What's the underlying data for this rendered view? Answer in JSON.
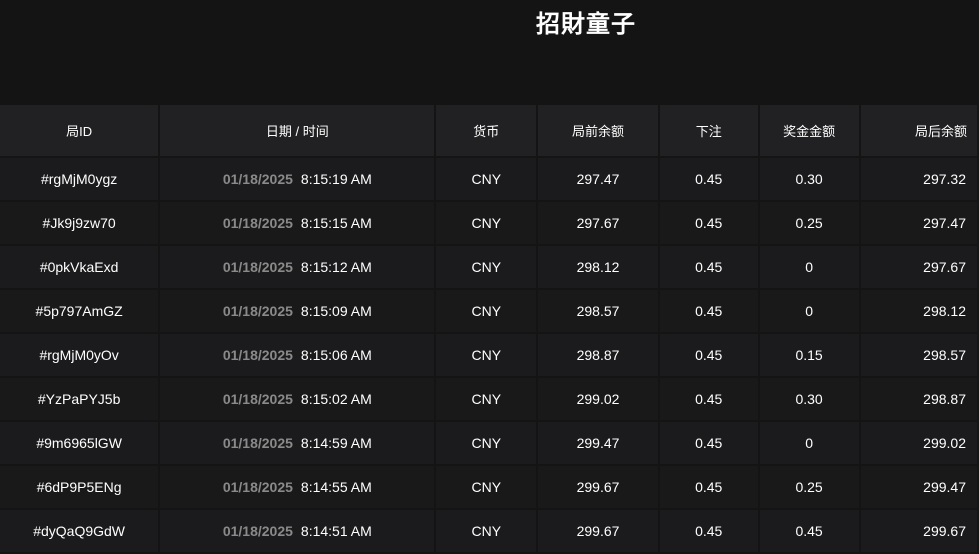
{
  "title": "招財童子",
  "columns": [
    "局ID",
    "日期 / 时间",
    "货币",
    "局前余额",
    "下注",
    "奖金金额",
    "局后余额"
  ],
  "rows": [
    {
      "id": "#rgMjM0ygz",
      "date": "01/18/2025",
      "time": "8:15:19 AM",
      "currency": "CNY",
      "before": "297.47",
      "bet": "0.45",
      "win": "0.30",
      "after": "297.32"
    },
    {
      "id": "#Jk9j9zw70",
      "date": "01/18/2025",
      "time": "8:15:15 AM",
      "currency": "CNY",
      "before": "297.67",
      "bet": "0.45",
      "win": "0.25",
      "after": "297.47"
    },
    {
      "id": "#0pkVkaExd",
      "date": "01/18/2025",
      "time": "8:15:12 AM",
      "currency": "CNY",
      "before": "298.12",
      "bet": "0.45",
      "win": "0",
      "after": "297.67"
    },
    {
      "id": "#5p797AmGZ",
      "date": "01/18/2025",
      "time": "8:15:09 AM",
      "currency": "CNY",
      "before": "298.57",
      "bet": "0.45",
      "win": "0",
      "after": "298.12"
    },
    {
      "id": "#rgMjM0yOv",
      "date": "01/18/2025",
      "time": "8:15:06 AM",
      "currency": "CNY",
      "before": "298.87",
      "bet": "0.45",
      "win": "0.15",
      "after": "298.57"
    },
    {
      "id": "#YzPaPYJ5b",
      "date": "01/18/2025",
      "time": "8:15:02 AM",
      "currency": "CNY",
      "before": "299.02",
      "bet": "0.45",
      "win": "0.30",
      "after": "298.87"
    },
    {
      "id": "#9m6965lGW",
      "date": "01/18/2025",
      "time": "8:14:59 AM",
      "currency": "CNY",
      "before": "299.47",
      "bet": "0.45",
      "win": "0",
      "after": "299.02"
    },
    {
      "id": "#6dP9P5ENg",
      "date": "01/18/2025",
      "time": "8:14:55 AM",
      "currency": "CNY",
      "before": "299.67",
      "bet": "0.45",
      "win": "0.25",
      "after": "299.47"
    },
    {
      "id": "#dyQaQ9GdW",
      "date": "01/18/2025",
      "time": "8:14:51 AM",
      "currency": "CNY",
      "before": "299.67",
      "bet": "0.45",
      "win": "0.45",
      "after": "299.67"
    }
  ]
}
